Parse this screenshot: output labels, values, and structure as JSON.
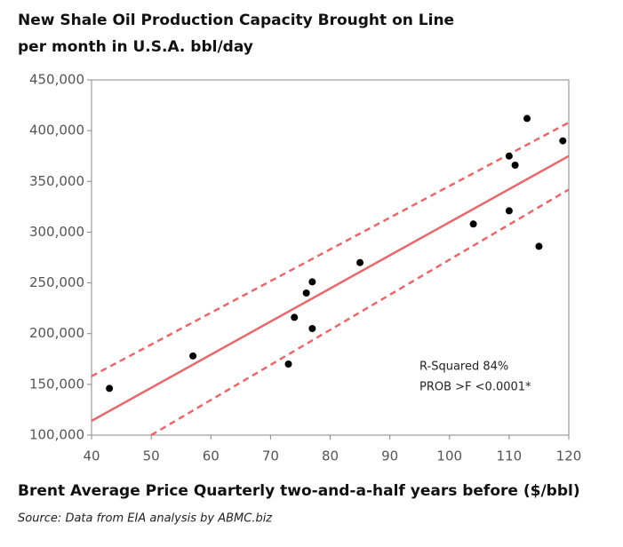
{
  "chart_data": {
    "type": "scatter",
    "title": "New Shale Oil Production Capacity Brought on Line per month in U.S.A. bbl/day",
    "x_label": "Brent Average Price Quarterly two-and-a-half years  before ($/bbl)",
    "source": "Source:  Data from EIA analysis by ABMC.biz",
    "annotations": [
      "R-Squared 84%",
      "PROB >F <0.0001*"
    ],
    "xlim": [
      40,
      120
    ],
    "xticks": [
      40,
      50,
      60,
      70,
      80,
      90,
      100,
      110,
      120
    ],
    "ylim": [
      100000,
      450000
    ],
    "yticks": [
      {
        "value": 100000,
        "label": "100,000"
      },
      {
        "value": 150000,
        "label": "150,000"
      },
      {
        "value": 200000,
        "label": "200,000"
      },
      {
        "value": 250000,
        "label": "250,000"
      },
      {
        "value": 300000,
        "label": "300,000"
      },
      {
        "value": 350000,
        "label": "350,000"
      },
      {
        "value": 400000,
        "label": "400,000"
      },
      {
        "value": 450000,
        "label": "450,000"
      }
    ],
    "points": {
      "color": "#000000",
      "x": [
        43,
        57,
        73,
        74,
        76,
        77,
        77,
        85,
        104,
        110,
        110,
        111,
        113,
        115,
        119
      ],
      "y": [
        146000,
        178000,
        170000,
        216000,
        240000,
        251000,
        205000,
        270000,
        308000,
        375000,
        321000,
        366000,
        412000,
        286000,
        390000
      ]
    },
    "fit_line": {
      "color": "#e8696b",
      "x": [
        40,
        120
      ],
      "y": [
        114000,
        375000
      ]
    },
    "confidence_bands": [
      {
        "color": "#e8696b",
        "dashed": true,
        "x": [
          40,
          120
        ],
        "y": [
          158000,
          408000
        ]
      },
      {
        "color": "#e8696b",
        "dashed": true,
        "x": [
          50,
          120
        ],
        "y": [
          100000,
          342000
        ]
      }
    ]
  }
}
